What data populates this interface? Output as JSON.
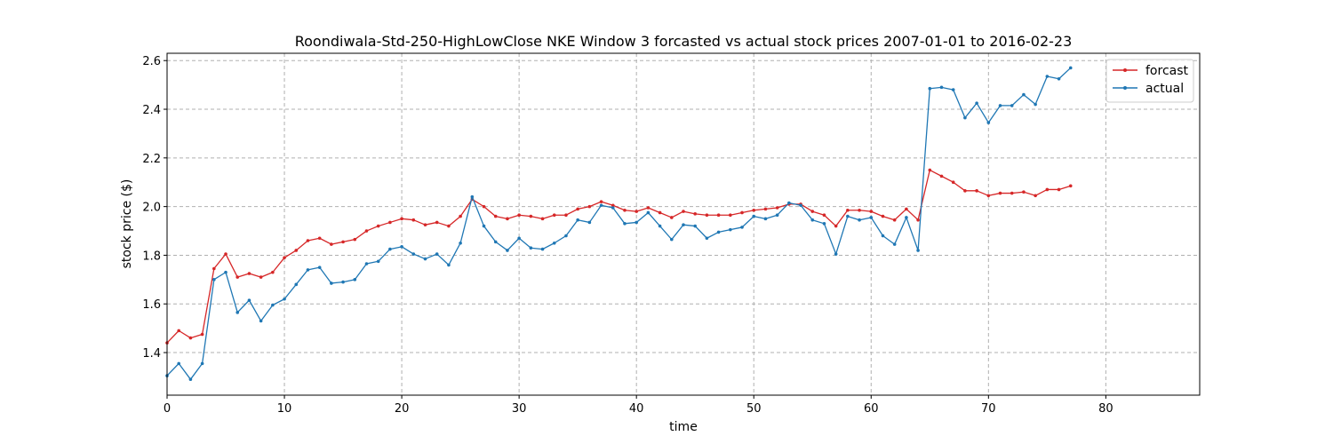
{
  "chart_data": {
    "type": "line",
    "title": "Roondiwala-Std-250-HighLowClose NKE Window 3 forcasted vs actual stock prices 2007-01-01 to 2016-02-23",
    "xlabel": "time",
    "ylabel": "stock price ($)",
    "xlim": [
      0,
      88
    ],
    "ylim": [
      1.225,
      2.63
    ],
    "xticks": [
      0,
      10,
      20,
      30,
      40,
      50,
      60,
      70,
      80
    ],
    "yticks": [
      1.4,
      1.6,
      1.8,
      2.0,
      2.2,
      2.4,
      2.6
    ],
    "grid": true,
    "legend_position": "top-right",
    "series": [
      {
        "name": "forcast",
        "color": "#d62728",
        "values": [
          1.44,
          1.49,
          1.46,
          1.475,
          1.745,
          1.805,
          1.71,
          1.725,
          1.71,
          1.73,
          1.79,
          1.82,
          1.86,
          1.87,
          1.845,
          1.855,
          1.865,
          1.9,
          1.92,
          1.935,
          1.95,
          1.945,
          1.925,
          1.935,
          1.92,
          1.96,
          2.03,
          2.0,
          1.96,
          1.95,
          1.965,
          1.96,
          1.95,
          1.965,
          1.965,
          1.99,
          2.0,
          2.02,
          2.005,
          1.985,
          1.98,
          1.995,
          1.975,
          1.955,
          1.98,
          1.97,
          1.965,
          1.965,
          1.965,
          1.975,
          1.985,
          1.99,
          1.995,
          2.01,
          2.01,
          1.98,
          1.965,
          1.92,
          1.985,
          1.985,
          1.98,
          1.96,
          1.945,
          1.99,
          1.945,
          2.15,
          2.125,
          2.1,
          2.065,
          2.065,
          2.045,
          2.055,
          2.055,
          2.06,
          2.045,
          2.07,
          2.07,
          2.085
        ]
      },
      {
        "name": "actual",
        "color": "#1f77b4",
        "values": [
          1.305,
          1.355,
          1.29,
          1.355,
          1.7,
          1.73,
          1.565,
          1.615,
          1.53,
          1.595,
          1.62,
          1.68,
          1.74,
          1.75,
          1.685,
          1.69,
          1.7,
          1.765,
          1.775,
          1.825,
          1.835,
          1.805,
          1.785,
          1.805,
          1.76,
          1.85,
          2.04,
          1.92,
          1.855,
          1.82,
          1.87,
          1.83,
          1.825,
          1.85,
          1.88,
          1.945,
          1.935,
          2.005,
          1.995,
          1.93,
          1.935,
          1.975,
          1.92,
          1.865,
          1.925,
          1.92,
          1.87,
          1.895,
          1.905,
          1.915,
          1.96,
          1.95,
          1.965,
          2.015,
          2.005,
          1.945,
          1.93,
          1.805,
          1.96,
          1.945,
          1.955,
          1.88,
          1.845,
          1.955,
          1.82,
          2.485,
          2.49,
          2.48,
          2.365,
          2.425,
          2.345,
          2.415,
          2.415,
          2.46,
          2.42,
          2.535,
          2.525,
          2.57
        ]
      }
    ]
  }
}
